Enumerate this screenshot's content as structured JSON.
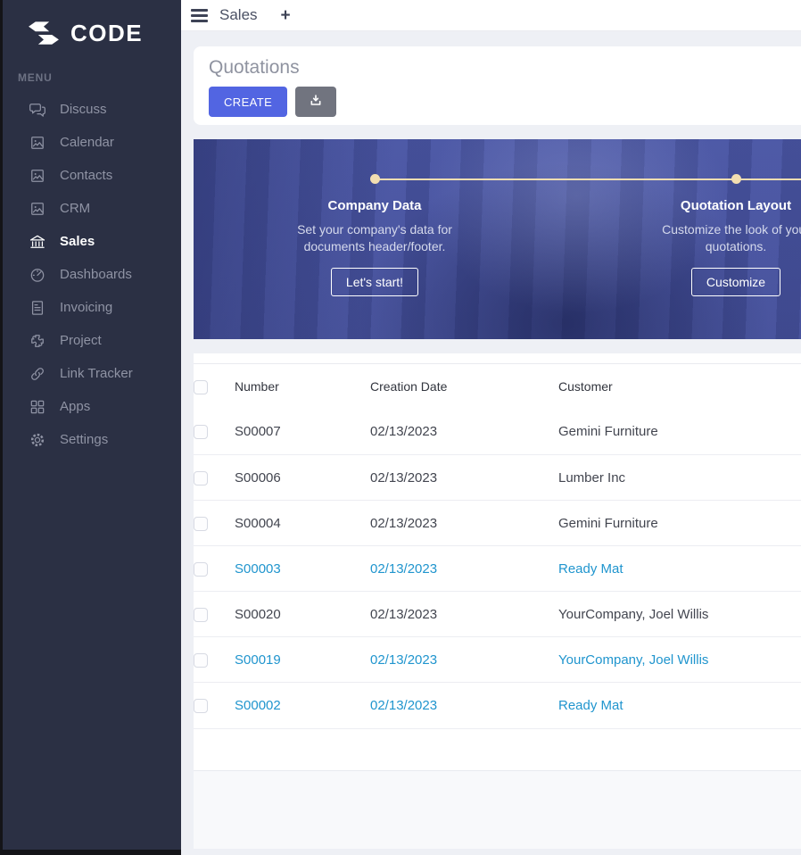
{
  "sidebar": {
    "logo_text": "CODE",
    "menu_label": "MENU",
    "items": [
      {
        "label": "Discuss",
        "icon": "comments-icon",
        "active": false
      },
      {
        "label": "Calendar",
        "icon": "image-placeholder-icon",
        "active": false
      },
      {
        "label": "Contacts",
        "icon": "image-placeholder-icon",
        "active": false
      },
      {
        "label": "CRM",
        "icon": "image-placeholder-icon",
        "active": false
      },
      {
        "label": "Sales",
        "icon": "bank-icon",
        "active": true
      },
      {
        "label": "Dashboards",
        "icon": "tachometer-icon",
        "active": false
      },
      {
        "label": "Invoicing",
        "icon": "invoice-icon",
        "active": false
      },
      {
        "label": "Project",
        "icon": "puzzle-icon",
        "active": false
      },
      {
        "label": "Link Tracker",
        "icon": "link-icon",
        "active": false
      },
      {
        "label": "Apps",
        "icon": "grid-icon",
        "active": false
      },
      {
        "label": "Settings",
        "icon": "gear-icon",
        "active": false
      }
    ]
  },
  "topbar": {
    "title": "Sales",
    "add_tab": "+"
  },
  "page": {
    "title": "Quotations",
    "create_label": "CREATE"
  },
  "onboarding": {
    "steps": [
      {
        "title": "Company Data",
        "description": "Set your company's data for documents header/footer.",
        "button": "Let's start!"
      },
      {
        "title": "Quotation Layout",
        "description": "Customize the look of your quotations.",
        "button": "Customize"
      }
    ]
  },
  "table": {
    "columns": [
      "Number",
      "Creation Date",
      "Customer"
    ],
    "rows": [
      {
        "number": "S00007",
        "date": "02/13/2023",
        "customer": "Gemini Furniture",
        "highlighted": false
      },
      {
        "number": "S00006",
        "date": "02/13/2023",
        "customer": "Lumber Inc",
        "highlighted": false
      },
      {
        "number": "S00004",
        "date": "02/13/2023",
        "customer": "Gemini Furniture",
        "highlighted": false
      },
      {
        "number": "S00003",
        "date": "02/13/2023",
        "customer": "Ready Mat",
        "highlighted": true
      },
      {
        "number": "S00020",
        "date": "02/13/2023",
        "customer": "YourCompany, Joel Willis",
        "highlighted": false
      },
      {
        "number": "S00019",
        "date": "02/13/2023",
        "customer": "YourCompany, Joel Willis",
        "highlighted": true
      },
      {
        "number": "S00002",
        "date": "02/13/2023",
        "customer": "Ready Mat",
        "highlighted": true
      }
    ]
  },
  "colors": {
    "sidebar-bg": "#2b3044",
    "accent": "#5265e2",
    "accent-gray": "#71747f",
    "link": "#2095ce",
    "banner-dot": "#f2deb1",
    "topbar-text": "#3e4356",
    "page-title": "#8f93a0"
  }
}
